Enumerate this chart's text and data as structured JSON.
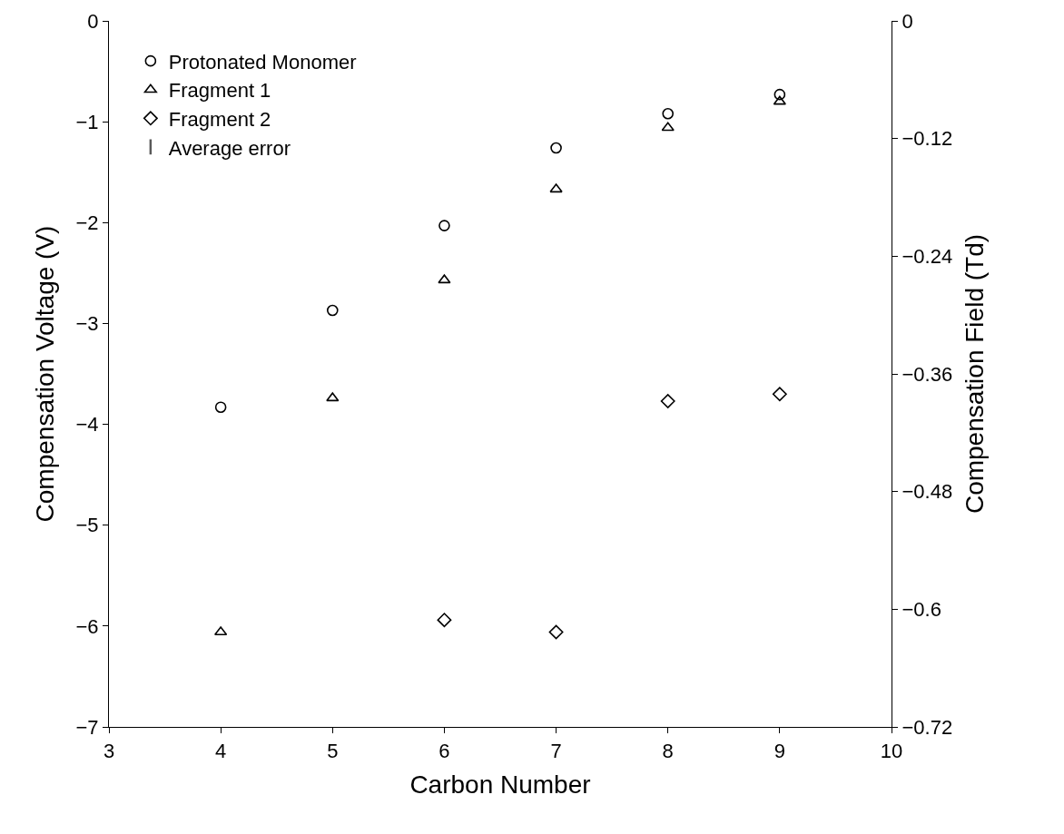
{
  "chart_data": {
    "type": "scatter",
    "xlabel": "Carbon Number",
    "ylabel": "Compensation Voltage (V)",
    "y2label": "Compensation Field (Td)",
    "x": [
      4,
      5,
      6,
      7,
      8,
      9
    ],
    "series": [
      {
        "name": "Protonated Monomer",
        "color": "#000000",
        "marker": "circle",
        "values": [
          -3.83,
          -2.87,
          -2.03,
          -1.26,
          -0.92,
          -0.73
        ]
      },
      {
        "name": "Fragment 1",
        "color": "#000000",
        "marker": "triangle",
        "values": [
          -6.06,
          -3.74,
          -2.57,
          -1.67,
          -1.06,
          -0.8
        ]
      },
      {
        "name": "Fragment 2",
        "color": "#000000",
        "marker": "diamond",
        "values": [
          null,
          null,
          -5.94,
          -6.06,
          -3.77,
          -3.7
        ]
      },
      {
        "name": "Average error",
        "color": "#595959",
        "marker": "none",
        "values": [
          null,
          null,
          null,
          null,
          null,
          null
        ]
      }
    ],
    "xlim": [
      3,
      10
    ],
    "xticks": [
      3,
      4,
      5,
      6,
      7,
      8,
      9,
      10
    ],
    "ylim": [
      -7,
      0
    ],
    "yticks": [
      -7,
      -6,
      -5,
      -4,
      -3,
      -2,
      -1,
      0
    ],
    "y2lim": [
      -0.72,
      0
    ],
    "y2ticks": [
      -0.72,
      -0.6,
      -0.48,
      -0.36,
      -0.24,
      -0.12,
      0
    ],
    "legend": "top left"
  }
}
